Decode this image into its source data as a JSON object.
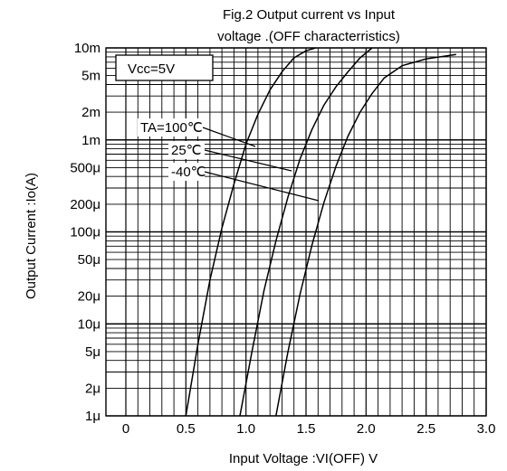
{
  "chart_data": {
    "type": "line",
    "title": "Fig.2 Output current  vs Input",
    "subtitle": "voltage .(OFF characterristics)",
    "xlabel": "Input Voltage :VI(OFF) V",
    "ylabel": "Output Current :Io(A)",
    "x_scale": "linear",
    "y_scale": "log",
    "xlim": [
      0,
      3.0
    ],
    "ylim": [
      1e-06,
      0.01
    ],
    "grid": true,
    "x_ticks": [
      0,
      0.5,
      1.0,
      1.5,
      2.0,
      2.5,
      3.0
    ],
    "x_tick_labels": [
      "0",
      "0.5",
      "1.0",
      "1.5",
      "2.0",
      "2.5",
      "3.0"
    ],
    "y_ticks": [
      0.01,
      0.005,
      0.002,
      0.001,
      0.0005,
      0.0002,
      0.0001,
      5e-05,
      2e-05,
      1e-05,
      5e-06,
      2e-06,
      1e-06
    ],
    "y_tick_labels": [
      "10m",
      "5m",
      "2m",
      "1m",
      "500μ",
      "200μ",
      "100μ",
      "50μ",
      "20μ",
      "10μ",
      "5μ",
      "2μ",
      "1μ"
    ],
    "condition_label": "Vcc=5V",
    "annotations": [
      "TA=100℃",
      "25℃",
      "-40℃"
    ],
    "series": [
      {
        "name": "TA=100℃",
        "x": [
          0.5,
          0.6,
          0.7,
          0.8,
          0.9,
          1.0,
          1.1,
          1.2,
          1.3,
          1.4,
          1.5,
          1.58
        ],
        "y": [
          1e-06,
          6e-06,
          3e-05,
          0.00011,
          0.00033,
          0.0009,
          0.0019,
          0.0035,
          0.0055,
          0.0078,
          0.0093,
          0.01
        ]
      },
      {
        "name": "25℃",
        "x": [
          0.95,
          1.05,
          1.15,
          1.25,
          1.35,
          1.45,
          1.55,
          1.65,
          1.75,
          1.85,
          1.95,
          2.05
        ],
        "y": [
          1e-06,
          5e-06,
          2.3e-05,
          8e-05,
          0.00024,
          0.00062,
          0.0013,
          0.0024,
          0.0038,
          0.0055,
          0.0078,
          0.01
        ]
      },
      {
        "name": "-40℃",
        "x": [
          1.25,
          1.35,
          1.45,
          1.55,
          1.65,
          1.75,
          1.85,
          1.95,
          2.05,
          2.15,
          2.3,
          2.5,
          2.75
        ],
        "y": [
          1e-06,
          5e-06,
          2.1e-05,
          7.2e-05,
          0.00021,
          0.00052,
          0.0011,
          0.002,
          0.0032,
          0.0047,
          0.0064,
          0.0076,
          0.0085
        ]
      }
    ],
    "colors": {
      "line": "#000000",
      "grid": "#000000",
      "background": "#ffffff"
    }
  }
}
